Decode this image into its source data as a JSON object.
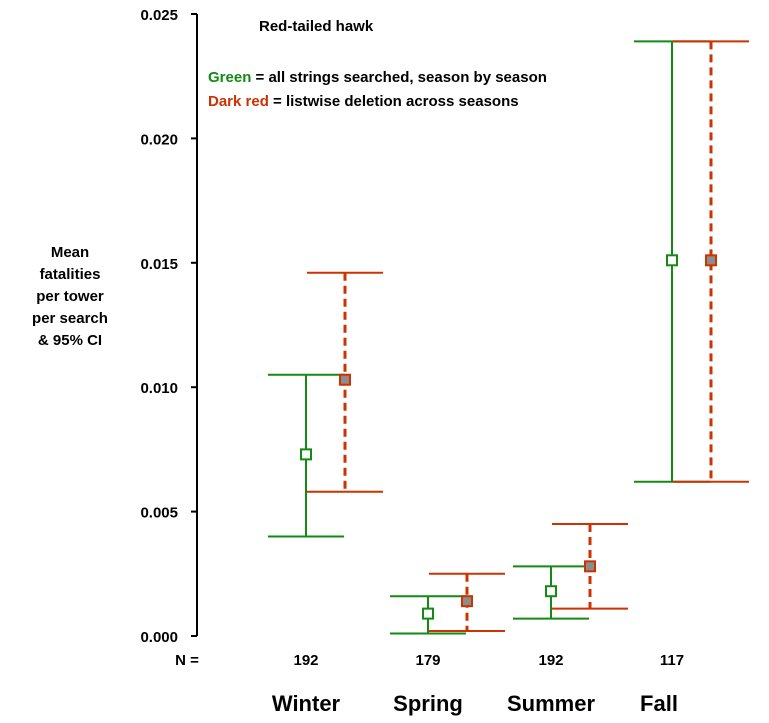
{
  "chart_data": {
    "type": "scatter",
    "title": "Red-tailed hawk",
    "ylabel_lines": [
      "Mean",
      "fatalities",
      "per tower",
      "per search",
      "& 95% CI"
    ],
    "ylim": [
      0,
      0.025
    ],
    "yticks": [
      "0.000",
      "0.005",
      "0.010",
      "0.015",
      "0.020",
      "0.025"
    ],
    "n_prefix": "N =",
    "categories": [
      "Winter",
      "Spring",
      "Summer",
      "Fall"
    ],
    "n_values": [
      "192",
      "179",
      "192",
      "117"
    ],
    "legend": {
      "green_label": "Green",
      "green_text": " = all strings searched, season by season",
      "red_label": "Dark red",
      "red_text": " = listwise deletion across seasons"
    },
    "series": [
      {
        "key": "green",
        "color": "#138a13",
        "style": "solid",
        "marker": "open-square",
        "points": [
          {
            "category": "Winter",
            "mean": 0.0073,
            "lo": 0.004,
            "hi": 0.0105
          },
          {
            "category": "Spring",
            "mean": 0.0009,
            "lo": 0.0001,
            "hi": 0.0016
          },
          {
            "category": "Summer",
            "mean": 0.0018,
            "lo": 0.0007,
            "hi": 0.0028
          },
          {
            "category": "Fall",
            "mean": 0.0151,
            "lo": 0.0062,
            "hi": 0.0239
          }
        ]
      },
      {
        "key": "red",
        "color": "#cc3300",
        "style": "dashed",
        "marker": "filled-square",
        "points": [
          {
            "category": "Winter",
            "mean": 0.0103,
            "lo": 0.0058,
            "hi": 0.0146
          },
          {
            "category": "Spring",
            "mean": 0.0014,
            "lo": 0.0002,
            "hi": 0.0025
          },
          {
            "category": "Summer",
            "mean": 0.0028,
            "lo": 0.0011,
            "hi": 0.0045
          },
          {
            "category": "Fall",
            "mean": 0.0151,
            "lo": 0.0062,
            "hi": 0.0239
          }
        ]
      }
    ]
  }
}
